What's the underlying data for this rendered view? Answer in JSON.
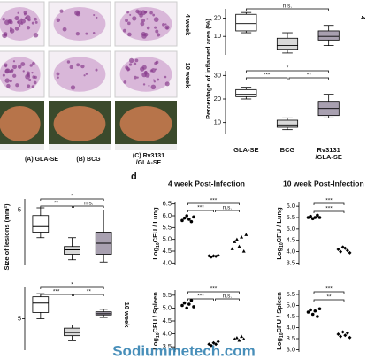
{
  "figure": {
    "images": {
      "columns": [
        "(A) GLA-SE",
        "(B) BCG",
        "(C) Rv3131",
        "/GLA-SE"
      ],
      "rows": [
        "4 week",
        "10 week"
      ]
    },
    "panel_label": "d",
    "inflamed": {
      "ylabel": "Percentage of inflamed area (%)",
      "row_label": "4",
      "categories": [
        [
          "GLA-SE"
        ],
        [
          "BCG"
        ],
        [
          "Rv3131",
          "/GLA-SE"
        ]
      ],
      "panels": [
        {
          "ylim": [
            0,
            25
          ],
          "yticks": [
            10,
            20
          ],
          "boxes": [
            {
              "min": 12,
              "q1": 13,
              "median": 17,
              "q3": 22,
              "max": 23
            },
            {
              "min": 1,
              "q1": 3,
              "median": 5,
              "q3": 9,
              "max": 12
            },
            {
              "min": 5,
              "q1": 8,
              "median": 10,
              "q3": 13,
              "max": 16
            }
          ],
          "annotations": [
            "n.s."
          ]
        },
        {
          "ylim": [
            5,
            32
          ],
          "yticks": [
            10,
            20,
            30
          ],
          "boxes": [
            {
              "min": 20,
              "q1": 21,
              "median": 22,
              "q3": 24,
              "max": 25
            },
            {
              "min": 7,
              "q1": 8,
              "median": 9,
              "q3": 11,
              "max": 12
            },
            {
              "min": 12,
              "q1": 13,
              "median": 16,
              "q3": 19,
              "max": 22
            }
          ],
          "annotations": [
            "*",
            "***",
            "**"
          ]
        }
      ]
    },
    "lesions": {
      "ylabel": "Size of lesions (mm²)",
      "row_label": "10 week",
      "panels": [
        {
          "ylim": [
            0,
            6
          ],
          "yticks": [
            5
          ],
          "boxes": [
            {
              "min": 2.5,
              "q1": 3,
              "median": 3.5,
              "q3": 4.5,
              "max": 5.2
            },
            {
              "min": 0.5,
              "q1": 1,
              "median": 1.4,
              "q3": 1.7,
              "max": 2.5
            },
            {
              "min": 0.3,
              "q1": 1,
              "median": 2,
              "q3": 3,
              "max": 5
            }
          ],
          "annotations": [
            "*",
            "**",
            "n.s."
          ]
        },
        {
          "ylim": [
            0,
            10
          ],
          "yticks": [
            5
          ],
          "boxes": [
            {
              "min": 5,
              "q1": 6,
              "median": 7.5,
              "q3": 8.5,
              "max": 9
            },
            {
              "min": 1.5,
              "q1": 2.3,
              "median": 2.8,
              "q3": 3.5,
              "max": 4
            },
            {
              "min": 5.2,
              "q1": 5.6,
              "median": 5.8,
              "q3": 6.1,
              "max": 6.5
            }
          ],
          "annotations": [
            "*",
            "***",
            "**"
          ]
        }
      ]
    },
    "cfu": [
      {
        "title": "4 week Post-Infection",
        "panels": [
          {
            "ylabel": [
              "Log",
              "10",
              "CFU / Lung"
            ],
            "ylim": [
              3.9,
              6.6
            ],
            "yticks": [
              {
                "value": 4,
                "label": "4.0"
              },
              4.5,
              {
                "value": 5,
                "label": "5.0"
              },
              5.5,
              {
                "value": 6,
                "label": "6.0"
              },
              6.5
            ],
            "groups": [
              [
                5.8,
                5.9,
                6.0,
                5.85,
                5.75,
                5.95
              ],
              [
                4.3,
                4.25,
                4.3,
                4.28,
                4.32
              ],
              [
                4.6,
                4.9,
                5.0,
                4.7,
                5.1,
                4.5,
                5.2
              ]
            ],
            "annotations": [
              "***",
              "***",
              "n.s."
            ]
          },
          {
            "ylabel": [
              "Log",
              "10",
              "CFU / Spleen"
            ],
            "ylim": [
              3.3,
              5.7
            ],
            "yticks": [
              3.5,
              {
                "value": 4,
                "label": "4.0"
              },
              4.5,
              {
                "value": 5,
                "label": "5.0"
              },
              5.5
            ],
            "groups": [
              [
                5.1,
                5.2,
                5.0,
                5.15,
                5.3,
                5.05
              ],
              [
                3.6,
                3.55,
                3.65,
                3.6,
                3.7
              ],
              [
                3.8,
                3.85,
                3.75,
                3.9,
                3.8
              ]
            ],
            "annotations": [
              "***",
              "***",
              "n.s."
            ]
          }
        ]
      },
      {
        "title": "10 week Post-Infection",
        "panels": [
          {
            "ylabel": [
              "Log",
              "10",
              "CFU / Lung"
            ],
            "ylim": [
              3.4,
              6.2
            ],
            "yticks": [
              3.5,
              {
                "value": 4,
                "label": "4.0"
              },
              4.5,
              {
                "value": 5,
                "label": "5.0"
              },
              5.5,
              {
                "value": 6,
                "label": "6.0"
              }
            ],
            "groups": [
              [
                5.5,
                5.55,
                5.45,
                5.5,
                5.6,
                5.5
              ],
              [
                4.1,
                4.0,
                4.2,
                4.15,
                4.05,
                3.95
              ]
            ],
            "annotations": [
              "***",
              "***"
            ]
          },
          {
            "ylabel": [
              "Log",
              "10",
              "CFU / Spleen"
            ],
            "ylim": [
              2.9,
              5.7
            ],
            "yticks": [
              {
                "value": 3,
                "label": "3.0"
              },
              3.5,
              {
                "value": 4,
                "label": "4.0"
              },
              4.5,
              {
                "value": 5,
                "label": "5.0"
              },
              5.5
            ],
            "groups": [
              [
                4.7,
                4.8,
                4.6,
                4.75,
                4.5,
                4.85
              ],
              [
                3.7,
                3.6,
                3.8,
                3.65,
                3.75,
                3.55
              ]
            ],
            "annotations": [
              "***",
              "**"
            ]
          }
        ]
      }
    ],
    "watermark": "Sodiummetech.com"
  }
}
